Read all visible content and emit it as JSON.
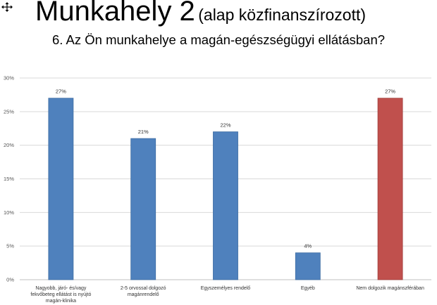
{
  "header": {
    "title_main": "Munkahely 2",
    "title_paren": "(alap közfinanszírozott)",
    "subtitle": "6. Az Ön munkahelye a magán-egészségügyi ellátásban?"
  },
  "icons": {
    "corner": "resize-arrows-icon"
  },
  "colors": {
    "bar": "#4F81BD",
    "highlight": "#C0504D",
    "grid": "#D9D9D9",
    "axis": "#BFBFBF"
  },
  "chart_data": {
    "type": "bar",
    "title": "6. Az Ön munkahelye a magán-egészségügyi ellátásban?",
    "categories": [
      [
        "Nagyobb, járó- és/vagy",
        "fekvőbeteg ellátást is nyújtó",
        "magán-klinika"
      ],
      [
        "2-5 orvossal dolgozó",
        "magánrendelő"
      ],
      [
        "Egyszemélyes rendelő"
      ],
      [
        "Egyéb"
      ],
      [
        "Nem dolgozik magánszférában"
      ]
    ],
    "values": [
      0.27,
      0.21,
      0.22,
      0.04,
      0.27
    ],
    "value_labels": [
      "27%",
      "21%",
      "22%",
      "4%",
      "27%"
    ],
    "bar_colors": [
      "#4F81BD",
      "#4F81BD",
      "#4F81BD",
      "#4F81BD",
      "#C0504D"
    ],
    "ylim": [
      0,
      0.3
    ],
    "yticks": [
      0,
      0.05,
      0.1,
      0.15,
      0.2,
      0.25,
      0.3
    ],
    "ytick_labels": [
      "0%",
      "5%",
      "10%",
      "15%",
      "20%",
      "25%",
      "30%"
    ],
    "grid": true,
    "legend": "none",
    "xlabel": "",
    "ylabel": ""
  }
}
